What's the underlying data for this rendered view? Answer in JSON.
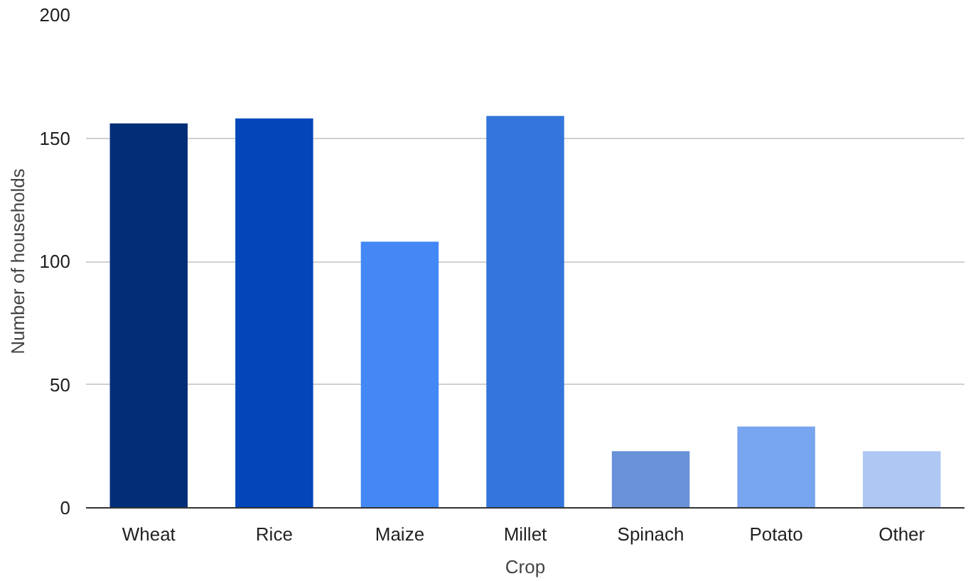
{
  "chart_data": {
    "type": "bar",
    "xlabel": "Crop",
    "ylabel": "Number of households",
    "categories": [
      "Wheat",
      "Rice",
      "Maize",
      "Millet",
      "Spinach",
      "Potato",
      "Other"
    ],
    "values": [
      156,
      158,
      108,
      159,
      23,
      33,
      23
    ],
    "colors": [
      "#022e78",
      "#0246b9",
      "#4388f5",
      "#3475dc",
      "#6a92d8",
      "#78a5ef",
      "#afc7f3"
    ],
    "ylim": [
      0,
      200
    ],
    "yticks": [
      0,
      50,
      100,
      150,
      200
    ],
    "grid": "y"
  }
}
